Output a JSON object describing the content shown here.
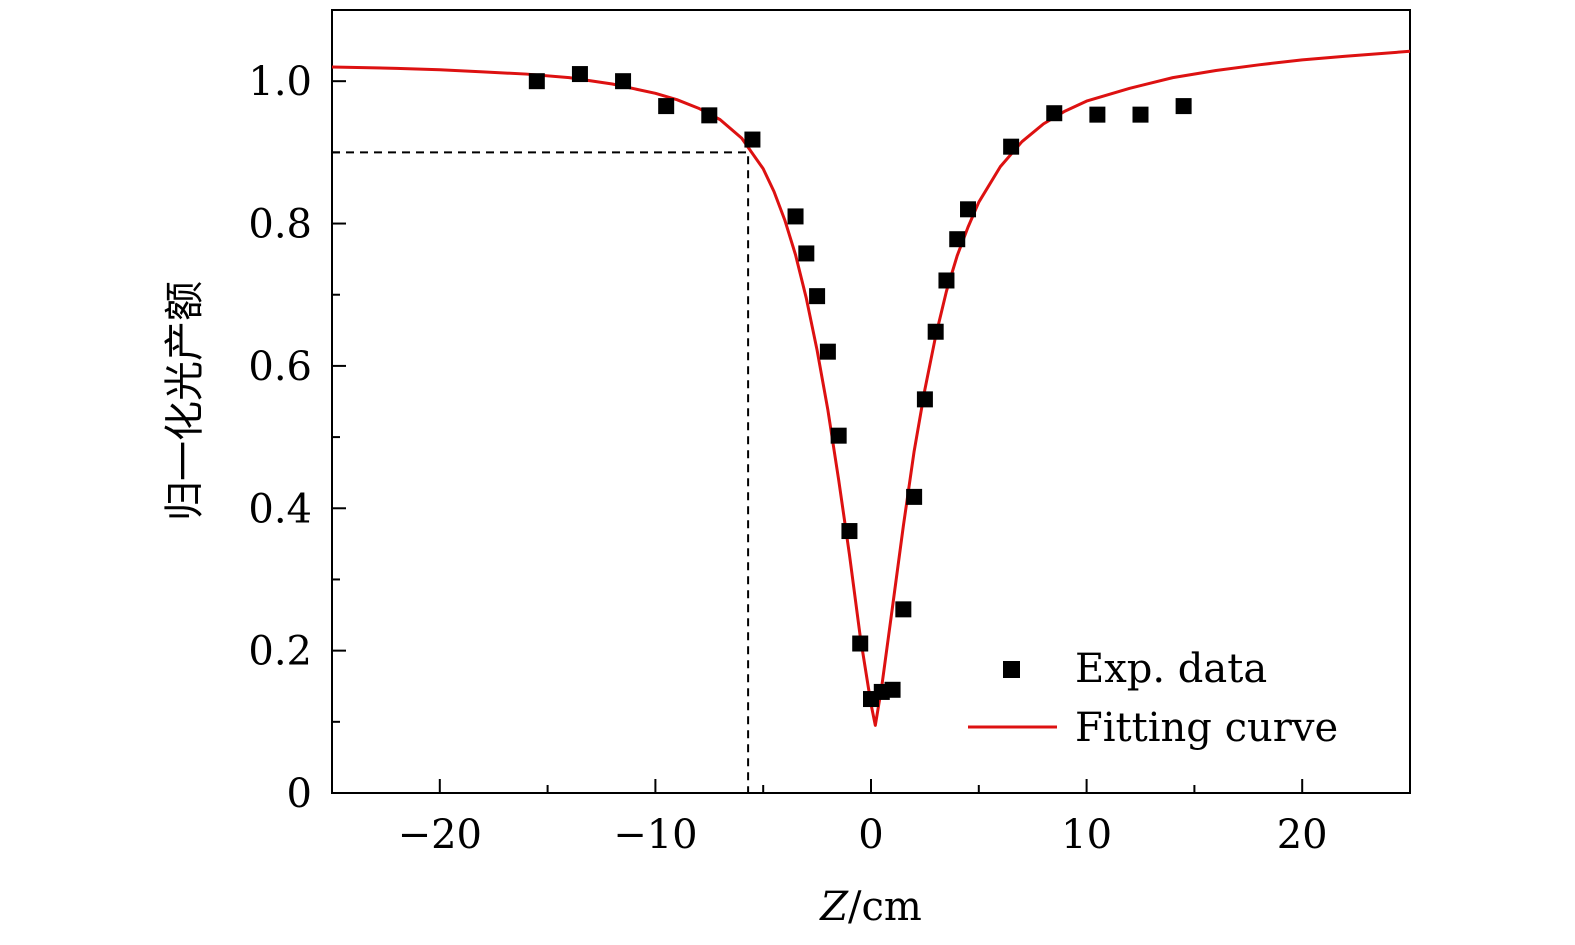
{
  "chart_data": {
    "type": "scatter",
    "title": "",
    "xlabel": "Z/cm",
    "xlabel_parts": {
      "italic": "Z",
      "rest": "/cm"
    },
    "ylabel": "归一化光产额",
    "xlim": [
      -25,
      25
    ],
    "ylim": [
      0,
      1.1
    ],
    "x_ticks": [
      -20,
      -10,
      0,
      10,
      20
    ],
    "x_tick_labels": [
      "−20",
      "−10",
      "0",
      "10",
      "20"
    ],
    "x_minor_ticks": [
      -15,
      -5,
      5,
      15
    ],
    "y_ticks": [
      0,
      0.2,
      0.4,
      0.6,
      0.8,
      1.0
    ],
    "y_tick_labels": [
      "0",
      "0.2",
      "0.4",
      "0.6",
      "0.8",
      "1.0"
    ],
    "y_minor_ticks": [
      0.1,
      0.3,
      0.5,
      0.7,
      0.9
    ],
    "grid": false,
    "legend_position": "bottom-right",
    "series": [
      {
        "name": "Exp. data",
        "kind": "scatter",
        "marker": "square",
        "color": "#000000",
        "x": [
          -15.5,
          -13.5,
          -11.5,
          -9.5,
          -7.5,
          -5.5,
          -3.5,
          -3.0,
          -2.5,
          -2.0,
          -1.5,
          -1.0,
          -0.5,
          0.0,
          0.5,
          1.0,
          1.5,
          2.0,
          2.5,
          3.0,
          3.5,
          4.0,
          4.5,
          6.5,
          8.5,
          10.5,
          12.5,
          14.5
        ],
        "y": [
          1.0,
          1.01,
          1.0,
          0.965,
          0.952,
          0.918,
          0.81,
          0.758,
          0.698,
          0.62,
          0.502,
          0.368,
          0.21,
          0.132,
          0.142,
          0.145,
          0.258,
          0.416,
          0.553,
          0.648,
          0.72,
          0.778,
          0.82,
          0.908,
          0.955,
          0.953,
          0.953,
          0.965
        ]
      },
      {
        "name": "Fitting curve",
        "kind": "line",
        "color": "#dd1111",
        "x": [
          -25,
          -22,
          -20,
          -18,
          -16,
          -14,
          -12,
          -10,
          -9,
          -8,
          -7,
          -6,
          -5,
          -4.5,
          -4,
          -3.5,
          -3,
          -2.5,
          -2,
          -1.5,
          -1,
          -0.5,
          0,
          0.2,
          0.5,
          1,
          1.5,
          2,
          2.5,
          3,
          3.5,
          4,
          4.5,
          5,
          6,
          7,
          8,
          9,
          10,
          12,
          14,
          16,
          18,
          20,
          22,
          25
        ],
        "y": [
          1.02,
          1.018,
          1.016,
          1.013,
          1.01,
          1.005,
          0.996,
          0.983,
          0.974,
          0.962,
          0.946,
          0.92,
          0.877,
          0.845,
          0.805,
          0.756,
          0.695,
          0.622,
          0.538,
          0.44,
          0.335,
          0.22,
          0.125,
          0.095,
          0.15,
          0.262,
          0.375,
          0.48,
          0.567,
          0.642,
          0.705,
          0.755,
          0.795,
          0.83,
          0.88,
          0.915,
          0.94,
          0.958,
          0.972,
          0.99,
          1.005,
          1.015,
          1.023,
          1.03,
          1.035,
          1.042
        ]
      },
      {
        "name": "",
        "kind": "reference",
        "style": "dashed",
        "color": "#000000",
        "x": [
          -25,
          -5.7,
          -5.7
        ],
        "y": [
          0.9,
          0.9,
          0
        ]
      }
    ]
  }
}
